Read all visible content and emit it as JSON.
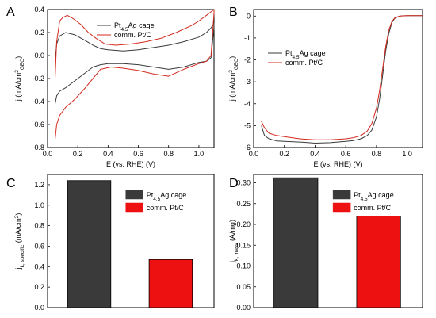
{
  "figure": {
    "panels": [
      "A",
      "B",
      "C",
      "D"
    ]
  },
  "colors": {
    "black_series": "#3a3a3a",
    "red_series": "#d42a1f",
    "red_bar": "#ee1111"
  },
  "chart_data": [
    {
      "panel": "A",
      "type": "line",
      "xlabel": "E (vs. RHE) (V)",
      "ylabel": "j (mA/cm²GEO)",
      "xlim": [
        0.0,
        1.1
      ],
      "ylim": [
        -0.8,
        0.4
      ],
      "xticks": [
        0.0,
        0.2,
        0.4,
        0.6,
        0.8,
        1.0
      ],
      "yticks": [
        -0.8,
        -0.6,
        -0.4,
        -0.2,
        0.0,
        0.2,
        0.4
      ],
      "legend_position": "top-right",
      "series": [
        {
          "name": "Pt4.5Ag cage",
          "color": "#3a3a3a",
          "x": [
            0.05,
            0.06,
            0.08,
            0.12,
            0.18,
            0.25,
            0.3,
            0.35,
            0.4,
            0.5,
            0.6,
            0.7,
            0.8,
            0.9,
            1.0,
            1.05,
            1.08,
            1.1,
            1.1,
            1.08,
            1.05,
            1.0,
            0.9,
            0.8,
            0.7,
            0.6,
            0.5,
            0.4,
            0.35,
            0.3,
            0.2,
            0.12,
            0.08,
            0.06,
            0.05
          ],
          "y": [
            -0.05,
            0.1,
            0.17,
            0.2,
            0.18,
            0.13,
            0.09,
            0.06,
            0.05,
            0.04,
            0.05,
            0.07,
            0.09,
            0.12,
            0.16,
            0.2,
            0.24,
            0.28,
            0.25,
            -0.02,
            -0.05,
            -0.06,
            -0.1,
            -0.12,
            -0.1,
            -0.08,
            -0.07,
            -0.07,
            -0.08,
            -0.1,
            -0.2,
            -0.28,
            -0.31,
            -0.35,
            -0.42
          ]
        },
        {
          "name": "comm. Pt/C",
          "color": "#d42a1f",
          "x": [
            0.05,
            0.06,
            0.08,
            0.1,
            0.13,
            0.17,
            0.22,
            0.27,
            0.32,
            0.38,
            0.45,
            0.55,
            0.65,
            0.75,
            0.85,
            0.95,
            1.0,
            1.05,
            1.1,
            1.1,
            1.08,
            1.05,
            1.0,
            0.9,
            0.8,
            0.7,
            0.6,
            0.5,
            0.42,
            0.35,
            0.3,
            0.25,
            0.18,
            0.12,
            0.08,
            0.06,
            0.05
          ],
          "y": [
            -0.2,
            0.12,
            0.3,
            0.33,
            0.35,
            0.32,
            0.27,
            0.2,
            0.15,
            0.1,
            0.09,
            0.1,
            0.12,
            0.15,
            0.2,
            0.26,
            0.3,
            0.35,
            0.4,
            0.37,
            0.0,
            -0.05,
            -0.07,
            -0.12,
            -0.18,
            -0.16,
            -0.13,
            -0.11,
            -0.1,
            -0.12,
            -0.2,
            -0.28,
            -0.38,
            -0.45,
            -0.52,
            -0.6,
            -0.73
          ]
        }
      ]
    },
    {
      "panel": "B",
      "type": "line",
      "xlabel": "E (vs. RHE) (V)",
      "ylabel": "j (mA/cm²GEO)",
      "xlim": [
        0.0,
        1.1
      ],
      "ylim": [
        -6.0,
        0.3
      ],
      "xticks": [
        0.0,
        0.2,
        0.4,
        0.6,
        0.8,
        1.0
      ],
      "yticks": [
        -6,
        -5,
        -4,
        -3,
        -2,
        -1,
        0
      ],
      "legend_position": "center-left",
      "series": [
        {
          "name": "Pt4.5Ag cage",
          "color": "#3a3a3a",
          "x": [
            0.05,
            0.07,
            0.1,
            0.15,
            0.2,
            0.3,
            0.4,
            0.5,
            0.6,
            0.65,
            0.7,
            0.74,
            0.77,
            0.8,
            0.82,
            0.84,
            0.86,
            0.88,
            0.9,
            0.92,
            0.95,
            1.0,
            1.05,
            1.1
          ],
          "y": [
            -5.0,
            -5.45,
            -5.6,
            -5.7,
            -5.72,
            -5.75,
            -5.8,
            -5.78,
            -5.72,
            -5.68,
            -5.6,
            -5.45,
            -5.2,
            -4.6,
            -3.8,
            -2.7,
            -1.6,
            -0.8,
            -0.3,
            -0.1,
            0.0,
            0.02,
            0.02,
            0.02
          ]
        },
        {
          "name": "comm. Pt/C",
          "color": "#d42a1f",
          "x": [
            0.05,
            0.07,
            0.1,
            0.15,
            0.2,
            0.3,
            0.4,
            0.5,
            0.6,
            0.65,
            0.7,
            0.74,
            0.77,
            0.8,
            0.82,
            0.84,
            0.86,
            0.88,
            0.9,
            0.92,
            0.95,
            1.0,
            1.05,
            1.1
          ],
          "y": [
            -4.8,
            -5.1,
            -5.35,
            -5.45,
            -5.5,
            -5.6,
            -5.65,
            -5.65,
            -5.6,
            -5.55,
            -5.45,
            -5.25,
            -4.9,
            -4.2,
            -3.4,
            -2.4,
            -1.4,
            -0.65,
            -0.25,
            -0.08,
            0.0,
            0.02,
            0.02,
            0.02
          ]
        }
      ]
    },
    {
      "panel": "C",
      "type": "bar",
      "ylabel": "jk, specific (mA/cm²)",
      "ylim": [
        0.0,
        1.3
      ],
      "yticks": [
        0.0,
        0.2,
        0.4,
        0.6,
        0.8,
        1.0,
        1.2
      ],
      "legend_position": "top-right",
      "series": [
        {
          "name": "Pt4.5Ag cage",
          "color": "#3a3a3a",
          "value": 1.24
        },
        {
          "name": "comm. Pt/C",
          "color": "#ee1111",
          "value": 0.47
        }
      ]
    },
    {
      "panel": "D",
      "type": "bar",
      "ylabel": "jk, mass (A/mg)",
      "ylim": [
        0.0,
        0.32
      ],
      "yticks": [
        0.0,
        0.05,
        0.1,
        0.15,
        0.2,
        0.25,
        0.3
      ],
      "legend_position": "top-right",
      "series": [
        {
          "name": "Pt4.5Ag cage",
          "color": "#3a3a3a",
          "value": 0.312
        },
        {
          "name": "comm. Pt/C",
          "color": "#ee1111",
          "value": 0.22
        }
      ]
    }
  ]
}
